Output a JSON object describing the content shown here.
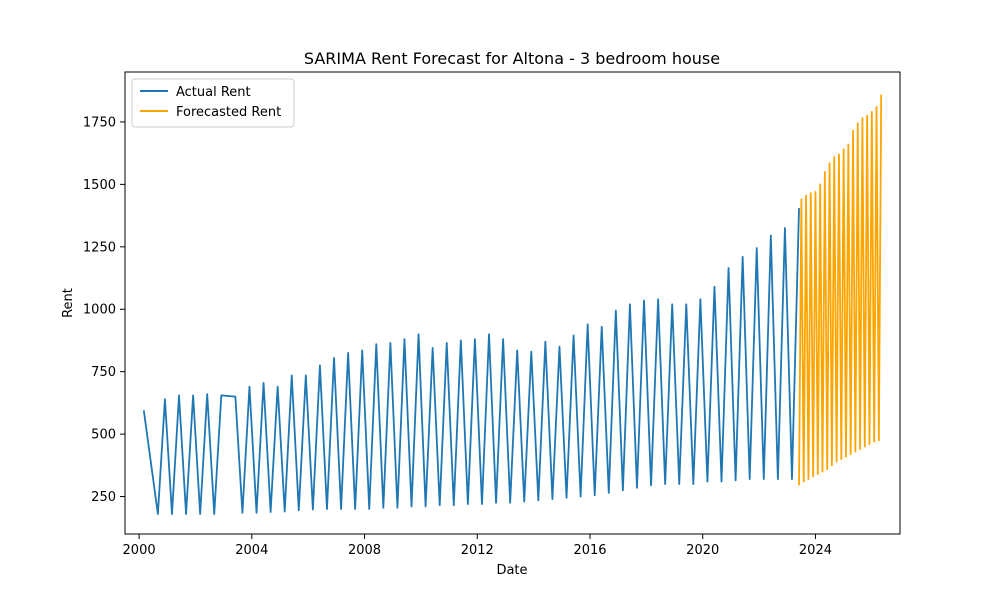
{
  "chart_data": {
    "type": "line",
    "title": "SARIMA Rent Forecast for Altona - 3 bedroom house",
    "xlabel": "Date",
    "ylabel": "Rent",
    "xlim": [
      "1999-07-01",
      "2027-01-01"
    ],
    "ylim": [
      100,
      1950
    ],
    "x_ticks": [
      "2000",
      "2004",
      "2008",
      "2012",
      "2016",
      "2020",
      "2024"
    ],
    "y_ticks": [
      "250",
      "500",
      "750",
      "1000",
      "1250",
      "1500",
      "1750"
    ],
    "grid": false,
    "legend_position": "upper-left",
    "series": [
      {
        "name": "Actual Rent",
        "color": "#1f77b4",
        "points": [
          [
            "2000-03",
            595
          ],
          [
            "2000-09",
            180
          ],
          [
            "2000-12",
            640
          ],
          [
            "2001-03",
            180
          ],
          [
            "2001-06",
            655
          ],
          [
            "2001-09",
            180
          ],
          [
            "2001-12",
            655
          ],
          [
            "2002-03",
            180
          ],
          [
            "2002-06",
            660
          ],
          [
            "2002-09",
            180
          ],
          [
            "2002-12",
            655
          ],
          [
            "2003-06",
            650
          ],
          [
            "2003-09",
            185
          ],
          [
            "2003-12",
            690
          ],
          [
            "2004-03",
            185
          ],
          [
            "2004-06",
            705
          ],
          [
            "2004-09",
            188
          ],
          [
            "2004-12",
            690
          ],
          [
            "2005-03",
            190
          ],
          [
            "2005-06",
            735
          ],
          [
            "2005-09",
            195
          ],
          [
            "2005-12",
            735
          ],
          [
            "2006-03",
            198
          ],
          [
            "2006-06",
            775
          ],
          [
            "2006-09",
            200
          ],
          [
            "2006-12",
            805
          ],
          [
            "2007-03",
            200
          ],
          [
            "2007-06",
            825
          ],
          [
            "2007-09",
            200
          ],
          [
            "2007-12",
            835
          ],
          [
            "2008-03",
            200
          ],
          [
            "2008-06",
            860
          ],
          [
            "2008-09",
            205
          ],
          [
            "2008-12",
            865
          ],
          [
            "2009-03",
            205
          ],
          [
            "2009-06",
            880
          ],
          [
            "2009-09",
            210
          ],
          [
            "2009-12",
            900
          ],
          [
            "2010-03",
            210
          ],
          [
            "2010-06",
            845
          ],
          [
            "2010-09",
            215
          ],
          [
            "2010-12",
            865
          ],
          [
            "2011-03",
            215
          ],
          [
            "2011-06",
            875
          ],
          [
            "2011-09",
            220
          ],
          [
            "2011-12",
            880
          ],
          [
            "2012-03",
            220
          ],
          [
            "2012-06",
            900
          ],
          [
            "2012-09",
            225
          ],
          [
            "2012-12",
            880
          ],
          [
            "2013-03",
            225
          ],
          [
            "2013-06",
            835
          ],
          [
            "2013-09",
            230
          ],
          [
            "2013-12",
            830
          ],
          [
            "2014-03",
            235
          ],
          [
            "2014-06",
            870
          ],
          [
            "2014-09",
            240
          ],
          [
            "2014-12",
            850
          ],
          [
            "2015-03",
            245
          ],
          [
            "2015-06",
            895
          ],
          [
            "2015-09",
            250
          ],
          [
            "2015-12",
            940
          ],
          [
            "2016-03",
            255
          ],
          [
            "2016-06",
            930
          ],
          [
            "2016-09",
            265
          ],
          [
            "2016-12",
            995
          ],
          [
            "2017-03",
            275
          ],
          [
            "2017-06",
            1020
          ],
          [
            "2017-09",
            285
          ],
          [
            "2017-12",
            1035
          ],
          [
            "2018-03",
            295
          ],
          [
            "2018-06",
            1040
          ],
          [
            "2018-09",
            300
          ],
          [
            "2018-12",
            1020
          ],
          [
            "2019-03",
            300
          ],
          [
            "2019-06",
            1020
          ],
          [
            "2019-09",
            300
          ],
          [
            "2019-12",
            1040
          ],
          [
            "2020-03",
            310
          ],
          [
            "2020-06",
            1090
          ],
          [
            "2020-09",
            310
          ],
          [
            "2020-12",
            1165
          ],
          [
            "2021-03",
            315
          ],
          [
            "2021-06",
            1210
          ],
          [
            "2021-09",
            320
          ],
          [
            "2021-12",
            1245
          ],
          [
            "2022-03",
            320
          ],
          [
            "2022-06",
            1295
          ],
          [
            "2022-09",
            320
          ],
          [
            "2022-12",
            1325
          ],
          [
            "2023-03",
            320
          ],
          [
            "2023-06",
            1405
          ]
        ]
      },
      {
        "name": "Forecasted Rent",
        "color": "#ffa500",
        "points": [
          [
            "2023-06",
            295
          ],
          [
            "2023-07",
            1440
          ],
          [
            "2023-08",
            310
          ],
          [
            "2023-09",
            1455
          ],
          [
            "2023-10",
            320
          ],
          [
            "2023-11",
            1465
          ],
          [
            "2023-12",
            330
          ],
          [
            "2024-01",
            1470
          ],
          [
            "2024-02",
            340
          ],
          [
            "2024-03",
            1500
          ],
          [
            "2024-04",
            350
          ],
          [
            "2024-05",
            1550
          ],
          [
            "2024-06",
            360
          ],
          [
            "2024-07",
            1585
          ],
          [
            "2024-08",
            375
          ],
          [
            "2024-09",
            1610
          ],
          [
            "2024-10",
            390
          ],
          [
            "2024-11",
            1620
          ],
          [
            "2024-12",
            400
          ],
          [
            "2025-01",
            1640
          ],
          [
            "2025-02",
            410
          ],
          [
            "2025-03",
            1660
          ],
          [
            "2025-04",
            420
          ],
          [
            "2025-05",
            1715
          ],
          [
            "2025-06",
            430
          ],
          [
            "2025-07",
            1745
          ],
          [
            "2025-08",
            440
          ],
          [
            "2025-09",
            1765
          ],
          [
            "2025-10",
            450
          ],
          [
            "2025-11",
            1775
          ],
          [
            "2025-12",
            460
          ],
          [
            "2026-01",
            1790
          ],
          [
            "2026-02",
            470
          ],
          [
            "2026-03",
            1810
          ],
          [
            "2026-04",
            475
          ],
          [
            "2026-05",
            1860
          ]
        ]
      }
    ]
  }
}
